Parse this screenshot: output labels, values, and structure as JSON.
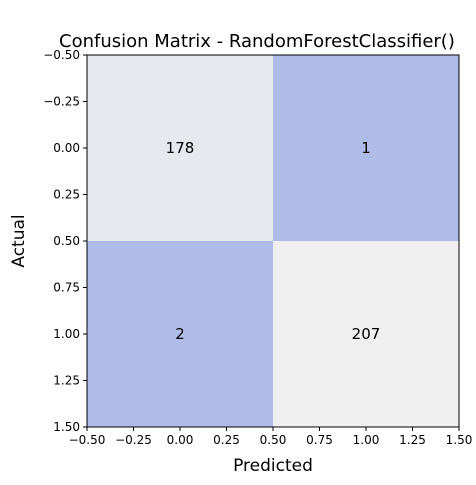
{
  "chart_data": {
    "type": "heatmap",
    "title": "Confusion Matrix - RandomForestClassifier()",
    "xlabel": "Predicted",
    "ylabel": "Actual",
    "xlim": [
      -0.5,
      1.5
    ],
    "ylim": [
      1.5,
      -0.5
    ],
    "x_ticks": [
      "−0.50",
      "−0.25",
      "0.00",
      "0.25",
      "0.50",
      "0.75",
      "1.00",
      "1.25",
      "1.50"
    ],
    "y_ticks": [
      "−0.50",
      "−0.25",
      "0.00",
      "0.25",
      "0.50",
      "0.75",
      "1.00",
      "1.25",
      "1.50"
    ],
    "matrix": [
      [
        178,
        1
      ],
      [
        2,
        207
      ]
    ],
    "cell_labels": [
      [
        "178",
        "1"
      ],
      [
        "2",
        "207"
      ]
    ],
    "colors": {
      "low": "#b0bce8",
      "high": "#efefef"
    }
  }
}
